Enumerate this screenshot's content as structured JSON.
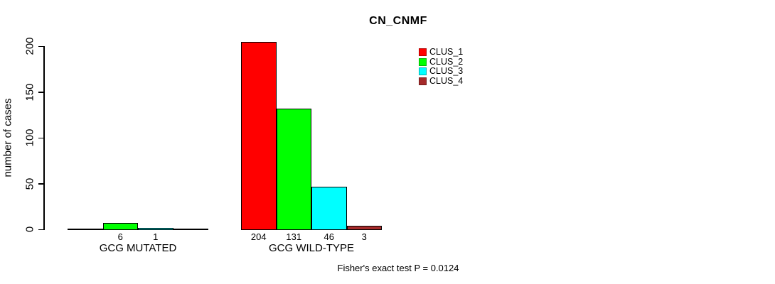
{
  "chart_data": {
    "type": "bar",
    "title": "CN_CNMF",
    "ylabel": "number of cases",
    "xlabel": "",
    "ylim": [
      0,
      210
    ],
    "yticks": [
      0,
      50,
      100,
      150,
      200
    ],
    "grid": false,
    "legend_position": "top-right-inside",
    "series": [
      {
        "name": "CLUS_1",
        "color": "#FF0000"
      },
      {
        "name": "CLUS_2",
        "color": "#00FF00"
      },
      {
        "name": "CLUS_3",
        "color": "#00FFFF"
      },
      {
        "name": "CLUS_4",
        "color": "#A52A2A"
      }
    ],
    "categories": [
      "GCG MUTATED",
      "GCG WILD-TYPE"
    ],
    "groups": [
      {
        "category": "GCG MUTATED",
        "values": [
          0,
          6,
          1,
          0
        ],
        "bar_labels": [
          "",
          "6",
          "1",
          ""
        ]
      },
      {
        "category": "GCG WILD-TYPE",
        "values": [
          204,
          131,
          46,
          3
        ],
        "bar_labels": [
          "204",
          "131",
          "46",
          "3"
        ]
      }
    ],
    "caption": "Fisher's exact test P = 0.0124"
  },
  "colors": {
    "background": "#FFFFFF",
    "axis": "#000000",
    "bar_border": "#000000"
  }
}
